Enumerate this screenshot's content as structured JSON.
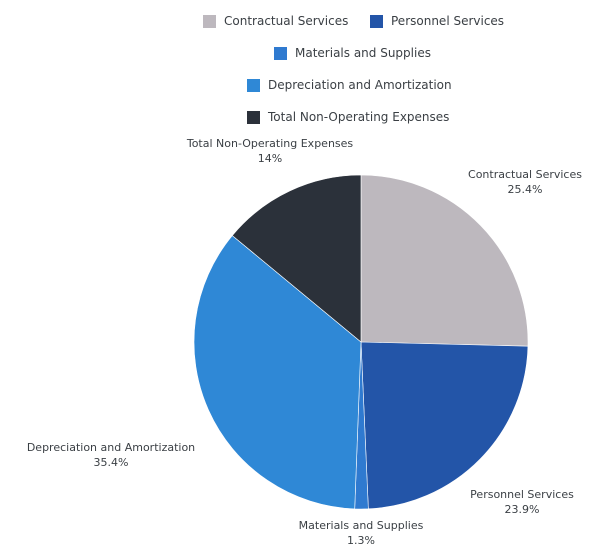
{
  "chart_data": {
    "type": "pie",
    "categories": [
      "Contractual Services",
      "Personnel Services",
      "Materials and Supplies",
      "Depreciation and Amortization",
      "Total Non-Operating Expenses"
    ],
    "values": [
      25.4,
      23.9,
      1.3,
      35.4,
      14
    ],
    "value_labels": [
      "25.4%",
      "23.9%",
      "1.3%",
      "35.4%",
      "14%"
    ],
    "colors": [
      "#bdb8be",
      "#2355a8",
      "#2f7ad0",
      "#2f88d6",
      "#2b313a"
    ],
    "legend": [
      {
        "label": "Contractual Services",
        "color": "#bdb8be"
      },
      {
        "label": "Personnel Services",
        "color": "#2355a8"
      },
      {
        "label": "Materials and Supplies",
        "color": "#2f7ad0"
      },
      {
        "label": "Depreciation and Amortization",
        "color": "#2f88d6"
      },
      {
        "label": "Total Non-Operating Expenses",
        "color": "#2b313a"
      }
    ],
    "legend_position": "top",
    "slice_labels": [
      {
        "name": "Contractual Services",
        "pct": "25.4%"
      },
      {
        "name": "Personnel Services",
        "pct": "23.9%"
      },
      {
        "name": "Materials and Supplies",
        "pct": "1.3%"
      },
      {
        "name": "Depreciation and Amortization",
        "pct": "35.4%"
      },
      {
        "name": "Total Non-Operating Expenses",
        "pct": "14%"
      }
    ]
  }
}
